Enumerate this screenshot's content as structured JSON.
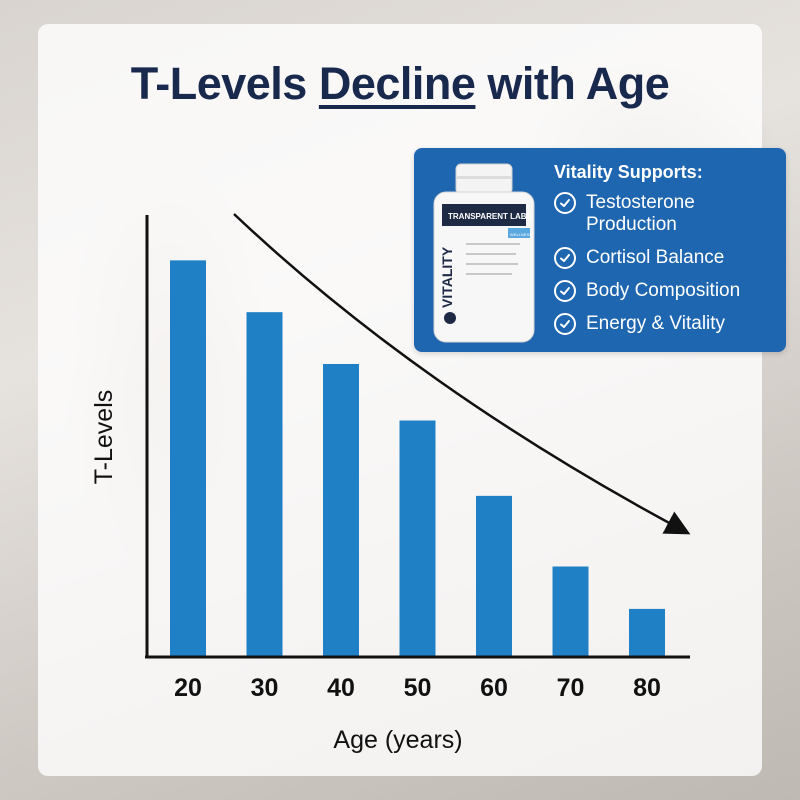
{
  "title": {
    "part1": "T-Levels ",
    "underlined": "Decline",
    "part2": " with Age"
  },
  "promo": {
    "heading": "Vitality Supports:",
    "items": [
      "Testosterone Production",
      "Cortisol Balance",
      "Body Composition",
      "Energy & Vitality"
    ],
    "bottle": {
      "brand": "TRANSPARENT LABS",
      "product": "VITALITY",
      "series": "WELLNESS"
    }
  },
  "chart_data": {
    "type": "bar",
    "categories": [
      "20",
      "30",
      "40",
      "50",
      "60",
      "70",
      "80"
    ],
    "values": [
      84,
      73,
      62,
      50,
      34,
      19,
      10
    ],
    "xlabel": "Age (years)",
    "ylabel": "T-Levels",
    "ylim": [
      0,
      100
    ],
    "grid": false,
    "annotation": "downward trend arrow",
    "colors": {
      "bar": "#1f80c6",
      "axis": "#111111",
      "arrow": "#111111"
    }
  }
}
